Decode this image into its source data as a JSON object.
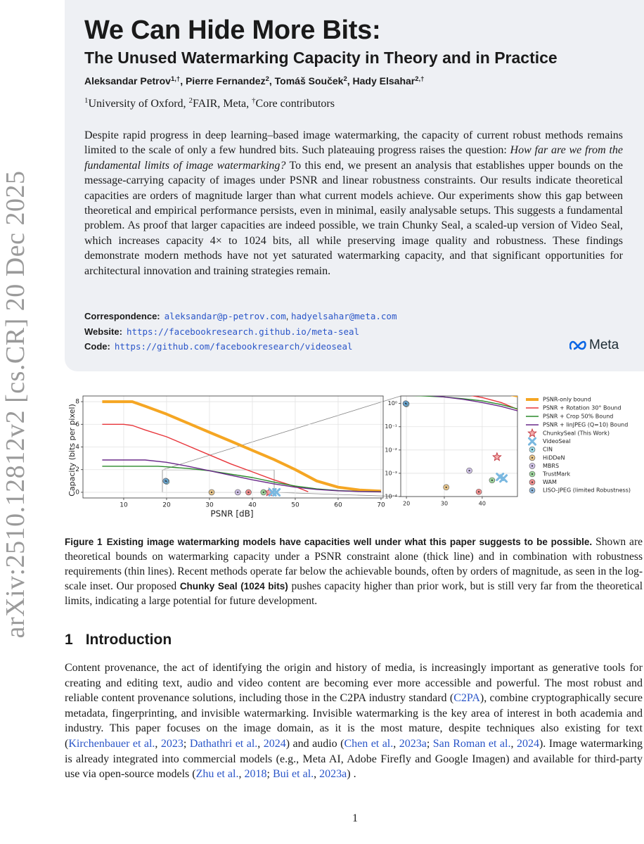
{
  "sidebar": "arXiv:2510.12812v2  [cs.CR]  20 Dec 2025",
  "header": {
    "title": "We Can Hide More Bits:",
    "subtitle": "The Unused Watermarking Capacity in Theory and in Practice",
    "authors": [
      "Aleksandar Petrov",
      {
        "sup": "1,†"
      },
      ", Pierre Fernandez",
      {
        "sup": "2"
      },
      ", Tomáš Souček",
      {
        "sup": "2"
      },
      ", Hady Elsahar",
      {
        "sup": "2,†"
      }
    ],
    "affiliations": [
      {
        "sup": "1"
      },
      "University of Oxford, ",
      {
        "sup": "2"
      },
      "FAIR, Meta, ",
      {
        "sup": "†"
      },
      "Core contributors"
    ],
    "abstract": [
      "Despite rapid progress in deep learning–based image watermarking, the capacity of current robust methods remains limited to the scale of only a few hundred bits. Such plateauing progress raises the question: ",
      {
        "em": "How far are we from the fundamental limits of image watermarking?"
      },
      " To this end, we present an analysis that establishes upper bounds on the message-carrying capacity of images under PSNR and linear robustness constraints. Our results indicate theoretical capacities are orders of magnitude larger than what current models achieve. Our experiments show this gap between theoretical and empirical performance persists, even in minimal, easily analysable setups. This suggests a fundamental problem. As proof that larger capacities are indeed possible, we train Chunky Seal, a scaled-up version of Video Seal, which increases capacity 4× to 1024 bits, all while preserving image quality and robustness. These findings demonstrate modern methods have not yet saturated watermarking capacity, and that significant opportunities for architectural innovation and training strategies remain."
    ],
    "correspondence": [
      {
        "b": "Correspondence:"
      },
      {
        "mono": "aleksandar@p-petrov.com"
      },
      ", ",
      {
        "mono": "hadyelsahar@meta.com"
      }
    ],
    "website": [
      {
        "b": "Website:"
      },
      {
        "mono": "https://facebookresearch.github.io/meta-seal"
      }
    ],
    "code": [
      {
        "b": "Code:"
      },
      {
        "mono": "https://github.com/facebookresearch/videoseal"
      }
    ],
    "logo": "Meta"
  },
  "chart_data": {
    "type": "line",
    "xlabel": "PSNR [dB]",
    "ylabel": "Capacity (bits per pixel)",
    "xlim": [
      0.5,
      70.5
    ],
    "ylim": [
      -0.5,
      8.5
    ],
    "xticks": [
      10,
      20,
      30,
      40,
      50,
      60,
      70
    ],
    "yticks": [
      0,
      2,
      4,
      6,
      8
    ],
    "grid": true,
    "series": [
      {
        "name": "PSNR-only bound",
        "color": "#f5a623",
        "width": 4,
        "x": [
          5,
          10,
          12,
          15,
          20,
          25,
          30,
          35,
          40,
          45,
          50,
          55,
          60,
          65,
          70
        ],
        "values": [
          8,
          8,
          8,
          7.6,
          6.9,
          6.1,
          5.3,
          4.5,
          3.7,
          2.9,
          2.0,
          1.0,
          0.45,
          0.2,
          0.1
        ]
      },
      {
        "name": "PSNR + Rotation 30° Bound",
        "color": "#e8363b",
        "width": 1.4,
        "x": [
          5,
          10,
          12,
          15,
          20,
          25,
          30,
          35,
          40,
          45,
          50,
          53
        ],
        "values": [
          6,
          6,
          5.9,
          5.5,
          4.9,
          4.1,
          3.3,
          2.5,
          1.8,
          1.1,
          0.5,
          0.05
        ]
      },
      {
        "name": "PSNR + Crop 50% Bound",
        "color": "#2a8a2a",
        "width": 1.4,
        "x": [
          5,
          10,
          15,
          18,
          20,
          25,
          30,
          35,
          40,
          45,
          50,
          55,
          60,
          65,
          70
        ],
        "values": [
          2.3,
          2.3,
          2.3,
          2.3,
          2.25,
          2.1,
          1.9,
          1.6,
          1.3,
          0.9,
          0.55,
          0.3,
          0.15,
          0.08,
          0.05
        ]
      },
      {
        "name": "PSNR + linJPEG (Q=10) Bound",
        "color": "#6a2a8a",
        "width": 1.4,
        "x": [
          5,
          10,
          15,
          20,
          25,
          30,
          35,
          40,
          45,
          50,
          55,
          60,
          65,
          70
        ],
        "values": [
          2.85,
          2.85,
          2.85,
          2.65,
          2.3,
          1.9,
          1.5,
          1.1,
          0.75,
          0.45,
          0.25,
          0.13,
          0.07,
          0.04
        ]
      }
    ],
    "points": [
      {
        "name": "ChunkySeal (This Work)",
        "color": "#e86a6a",
        "marker": "star",
        "x": [
          43.9
        ],
        "values": [
          0.005
        ]
      },
      {
        "name": "VideoSeal",
        "color": "#7ab8e0",
        "marker": "cross",
        "x": [
          44.7,
          45.6
        ],
        "values": [
          0.0007,
          0.0006
        ]
      },
      {
        "name": "CIN",
        "color": "#5ec8e0",
        "marker": "circle",
        "x": [
          20
        ],
        "values": [
          0.95
        ]
      },
      {
        "name": "HiDDeN",
        "color": "#d9a040",
        "marker": "circle",
        "x": [
          30.5
        ],
        "values": [
          0.00025
        ]
      },
      {
        "name": "MBRS",
        "color": "#b09ad8",
        "marker": "circle",
        "x": [
          36.6
        ],
        "values": [
          0.0013
        ]
      },
      {
        "name": "TrustMark",
        "color": "#5cb85c",
        "marker": "circle",
        "x": [
          42.6
        ],
        "values": [
          0.0005
        ]
      },
      {
        "name": "WAM",
        "color": "#e84545",
        "marker": "circle",
        "x": [
          39.1
        ],
        "values": [
          0.00016
        ]
      },
      {
        "name": "LISO-JPEG (limited Robustness)",
        "color": "#4a8ac8",
        "marker": "circle",
        "x": [
          19.8
        ],
        "values": [
          1.0
        ]
      }
    ],
    "inset": {
      "yscale": "log",
      "xlim": [
        18.5,
        49.3
      ],
      "ylim": [
        0.0001,
        2.1
      ],
      "xticks": [
        20,
        30,
        40
      ],
      "yticks": [
        {
          "value": 1,
          "label": "10⁰"
        },
        {
          "value": 0.1,
          "label": "10⁻¹"
        },
        {
          "value": 0.01,
          "label": "10⁻²"
        },
        {
          "value": 0.001,
          "label": "10⁻³"
        },
        {
          "value": 0.0001,
          "label": "10⁻⁴"
        }
      ],
      "grid": true
    }
  },
  "caption": [
    {
      "label": "Figure 1"
    },
    {
      "b": "Existing image watermarking models have capacities well under what this paper suggests to be possible."
    },
    " Shown are theoretical bounds on watermarking capacity under a PSNR constraint alone (thick line) and in combination with robustness requirements (thin lines). Recent methods operate far below the achievable bounds, often by orders of magnitude, as seen in the log-scale inset. Our proposed ",
    {
      "b": "Chunky Seal (1024 bits)"
    },
    " pushes capacity higher than prior work, but is still very far from the theoretical limits, indicating a large potential for future development."
  ],
  "section": {
    "number": "1",
    "title": "Introduction"
  },
  "body": [
    "Content provenance, the act of identifying the origin and history of media, is increasingly important as generative tools for creating and editing text, audio and video content are becoming ever more accessible and powerful. The most robust and reliable content provenance solutions, including those in the C2PA industry standard (",
    {
      "cite": "C2PA"
    },
    "), combine cryptographically secure metadata, fingerprinting, and invisible watermarking. Invisible watermarking is the key area of interest in both academia and industry. This paper focuses on the image domain, as it is the most mature, despite techniques also existing for text (",
    {
      "cite": "Kirchenbauer et al."
    },
    ", ",
    {
      "cite": "2023"
    },
    "; ",
    {
      "cite": "Dathathri et al."
    },
    ", ",
    {
      "cite": "2024"
    },
    ") and audio (",
    {
      "cite": "Chen et al."
    },
    ", ",
    {
      "cite": "2023a"
    },
    "; ",
    {
      "cite": "San Roman et al."
    },
    ", ",
    {
      "cite": "2024"
    },
    "). Image watermarking is already integrated into commercial models (e.g., Meta AI, Adobe Firefly and Google Imagen) and available for third-party use via open-source models (",
    {
      "cite": "Zhu et al."
    },
    ", ",
    {
      "cite": "2018"
    },
    "; ",
    {
      "cite": "Bui et al."
    },
    ", ",
    {
      "cite": "2023a"
    },
    ") ."
  ],
  "page_number": "1"
}
